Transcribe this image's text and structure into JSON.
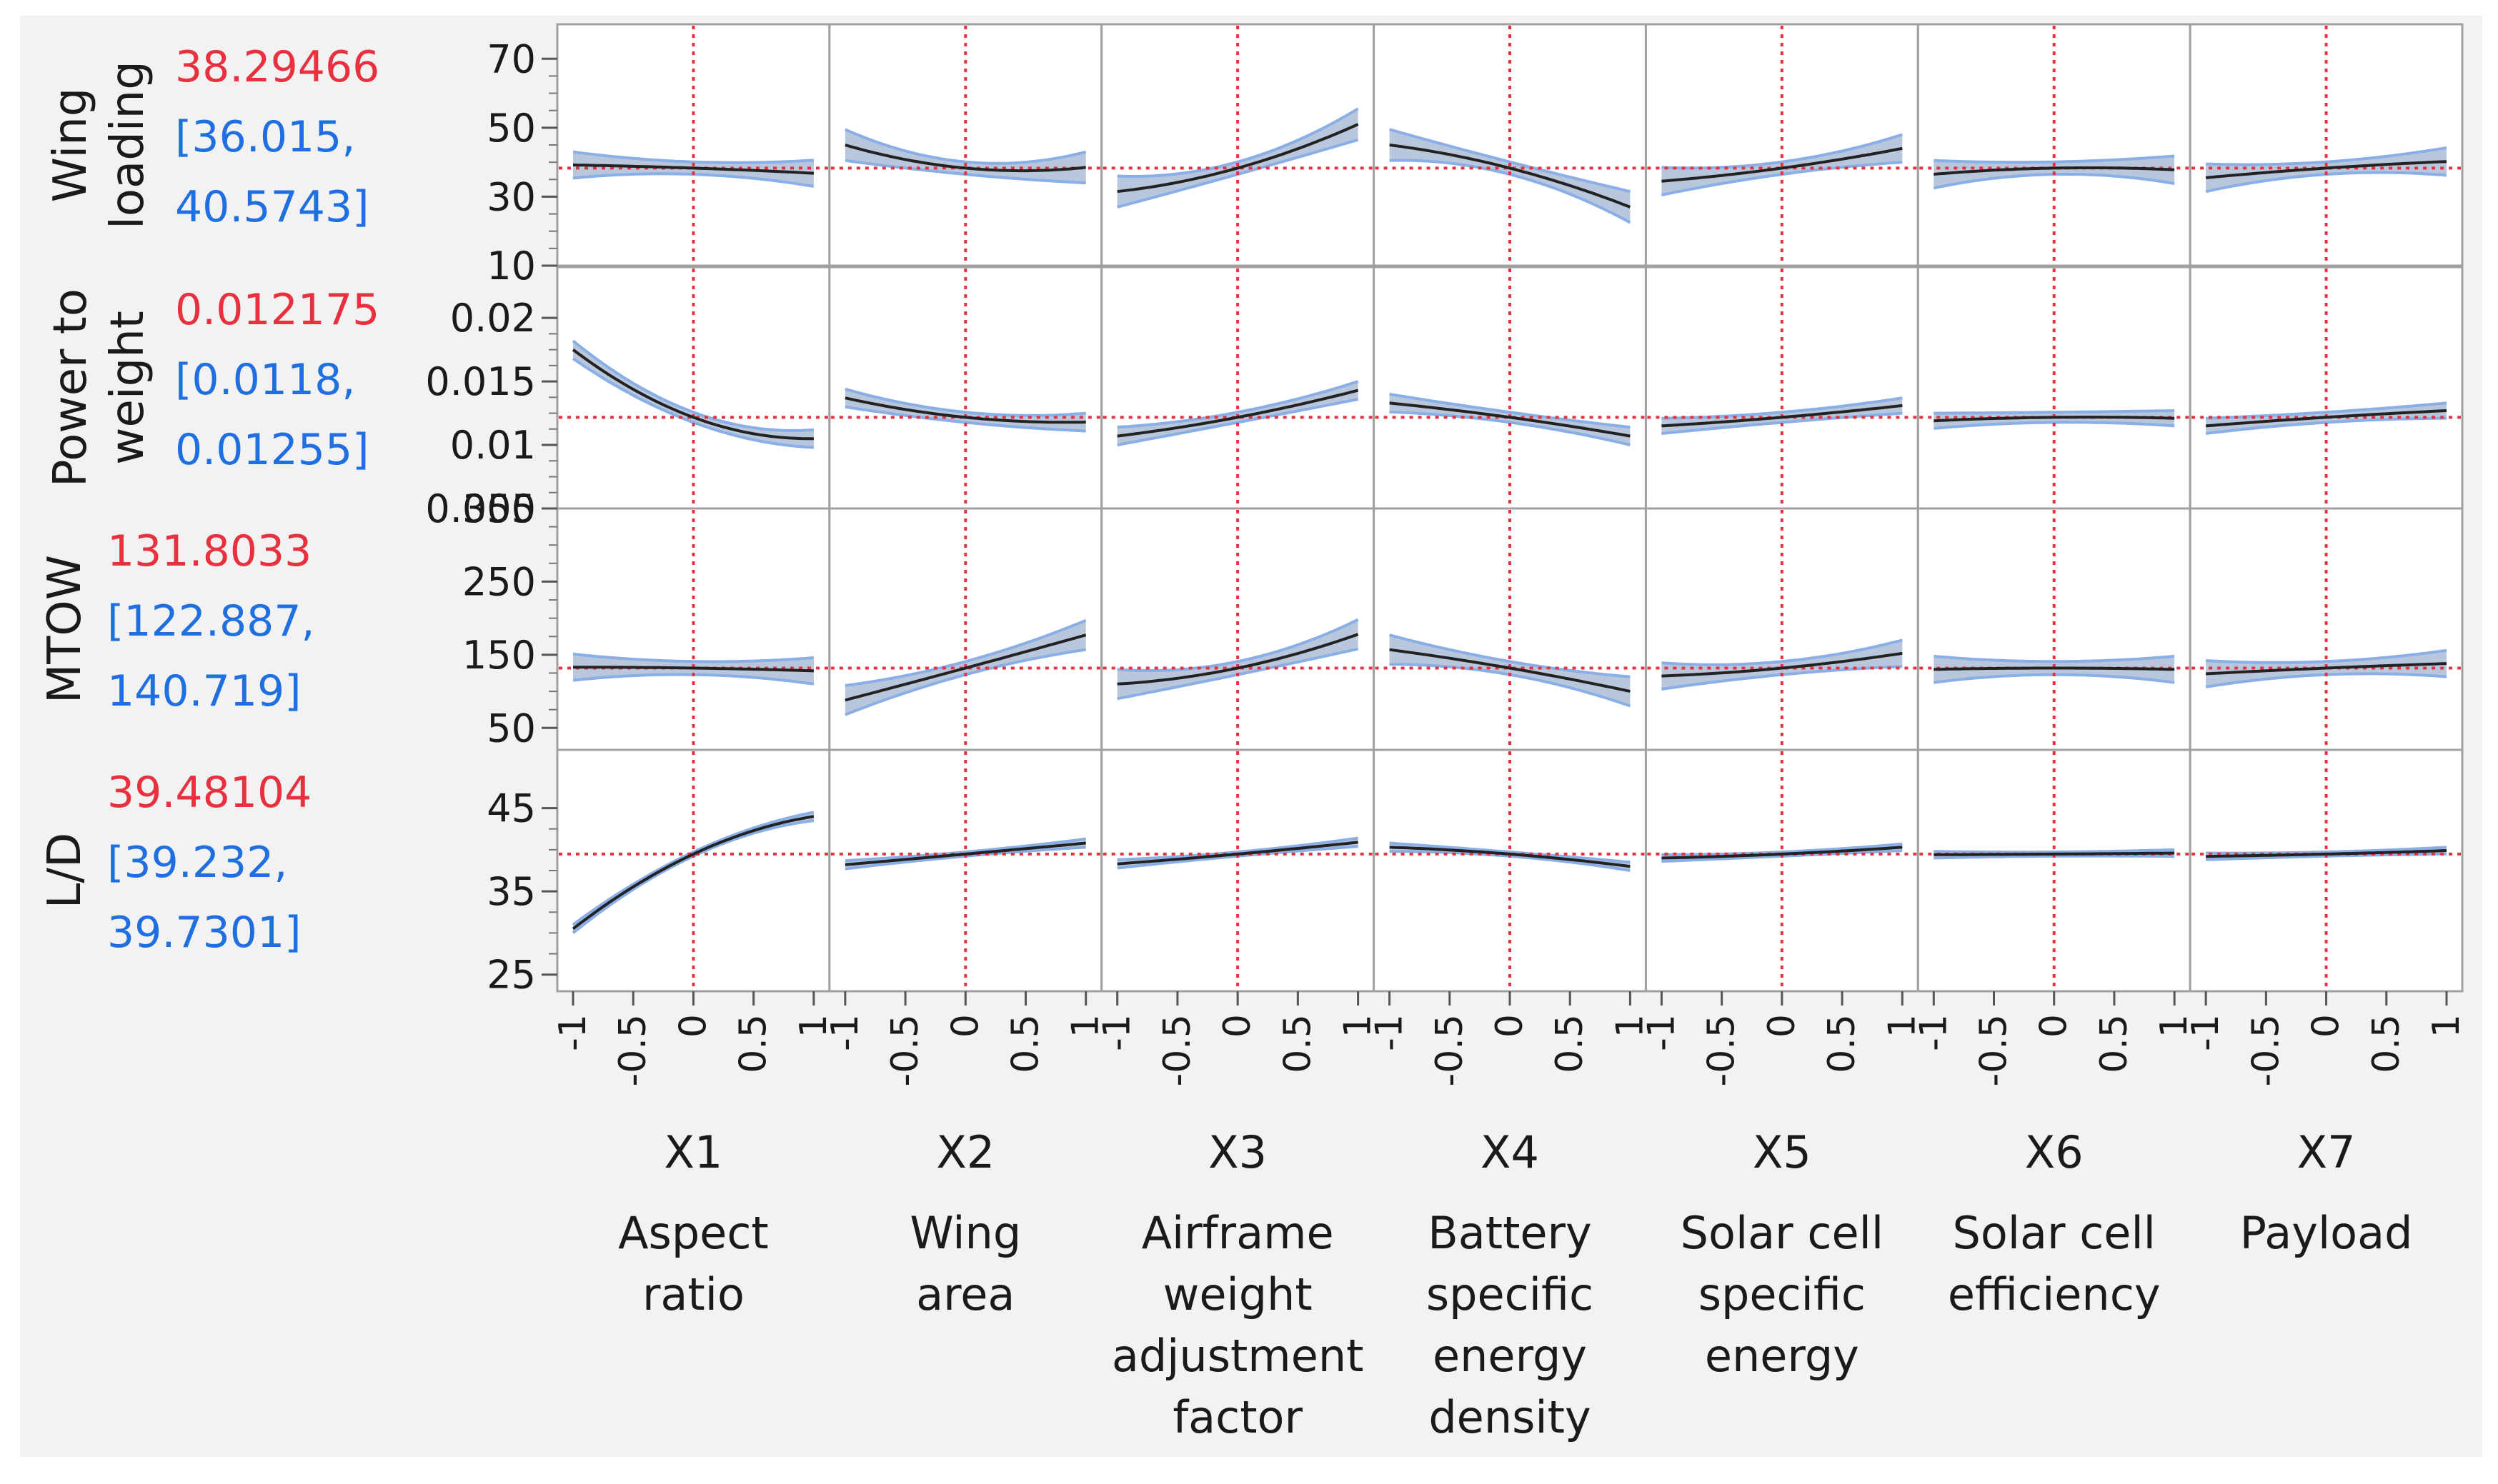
{
  "chart_data": {
    "type": "line",
    "title": "",
    "factors": [
      {
        "id": "X1",
        "lines": [
          "Aspect",
          "ratio"
        ],
        "current": 0
      },
      {
        "id": "X2",
        "lines": [
          "Wing",
          "area"
        ],
        "current": 0
      },
      {
        "id": "X3",
        "lines": [
          "Airframe",
          "weight",
          "adjustment",
          "factor"
        ],
        "current": 0
      },
      {
        "id": "X4",
        "lines": [
          "Battery",
          "specific",
          "energy",
          "density"
        ],
        "current": 0
      },
      {
        "id": "X5",
        "lines": [
          "Solar cell",
          "specific",
          "energy"
        ],
        "current": 0
      },
      {
        "id": "X6",
        "lines": [
          "Solar cell",
          "efficiency"
        ],
        "current": 0
      },
      {
        "id": "X7",
        "lines": [
          "Payload"
        ],
        "current": 0
      }
    ],
    "x_range": [
      -1,
      1
    ],
    "x_ticks": [
      "-1",
      "-0.5",
      "0",
      "0.5",
      "1"
    ],
    "x_tick_values": [
      -1,
      -0.5,
      0,
      0.5,
      1
    ],
    "responses": [
      {
        "label_lines": [
          "Wing",
          "loading"
        ],
        "predicted": "38.29466",
        "ci_lines": [
          "[36.015,",
          "40.5743]"
        ],
        "value": 38.29466,
        "ylim": [
          10,
          80
        ],
        "y_ticks": [
          "70",
          "50",
          "30",
          "10"
        ],
        "y_tick_values": [
          70,
          50,
          30,
          10
        ],
        "curves": [
          {
            "factor": "X1",
            "x": [
              -1,
              0,
              1
            ],
            "y": [
              39.2,
              38.29,
              36.8
            ],
            "ci_halfwidth": [
              3.8,
              1.8,
              3.8
            ]
          },
          {
            "factor": "X2",
            "x": [
              -1,
              0,
              1
            ],
            "y": [
              45.0,
              38.29,
              38.5
            ],
            "ci_halfwidth": [
              4.5,
              1.8,
              4.5
            ]
          },
          {
            "factor": "X3",
            "x": [
              -1,
              0,
              1
            ],
            "y": [
              31.5,
              38.29,
              51.0
            ],
            "ci_halfwidth": [
              4.5,
              1.8,
              4.5
            ]
          },
          {
            "factor": "X4",
            "x": [
              -1,
              0,
              1
            ],
            "y": [
              45.0,
              38.29,
              27.0
            ],
            "ci_halfwidth": [
              4.5,
              1.8,
              4.5
            ]
          },
          {
            "factor": "X5",
            "x": [
              -1,
              0,
              1
            ],
            "y": [
              34.5,
              38.29,
              44.0
            ],
            "ci_halfwidth": [
              4.0,
              1.8,
              4.0
            ]
          },
          {
            "factor": "X6",
            "x": [
              -1,
              0,
              1
            ],
            "y": [
              36.5,
              38.29,
              37.8
            ],
            "ci_halfwidth": [
              4.0,
              1.8,
              4.0
            ]
          },
          {
            "factor": "X7",
            "x": [
              -1,
              0,
              1
            ],
            "y": [
              35.5,
              38.29,
              40.2
            ],
            "ci_halfwidth": [
              4.0,
              1.8,
              4.0
            ]
          }
        ]
      },
      {
        "label_lines": [
          "Power to",
          "weight"
        ],
        "predicted": "0.012175",
        "ci_lines": [
          "[0.0118,",
          "0.01255]"
        ],
        "value": 0.012175,
        "ylim": [
          0.005,
          0.024
        ],
        "y_ticks": [
          "0.02",
          "0.015",
          "0.01",
          "0.005"
        ],
        "y_tick_values": [
          0.02,
          0.015,
          0.01,
          0.005
        ],
        "curves": [
          {
            "factor": "X1",
            "x": [
              -1,
              0,
              1
            ],
            "y": [
              0.0175,
              0.012175,
              0.0105
            ],
            "ci_halfwidth": [
              0.0007,
              0.0004,
              0.0007
            ]
          },
          {
            "factor": "X2",
            "x": [
              -1,
              0,
              1
            ],
            "y": [
              0.0137,
              0.012175,
              0.0118
            ],
            "ci_halfwidth": [
              0.0007,
              0.0004,
              0.0007
            ]
          },
          {
            "factor": "X3",
            "x": [
              -1,
              0,
              1
            ],
            "y": [
              0.0107,
              0.012175,
              0.0143
            ],
            "ci_halfwidth": [
              0.0007,
              0.0004,
              0.0007
            ]
          },
          {
            "factor": "X4",
            "x": [
              -1,
              0,
              1
            ],
            "y": [
              0.0133,
              0.012175,
              0.0107
            ],
            "ci_halfwidth": [
              0.0007,
              0.0004,
              0.0007
            ]
          },
          {
            "factor": "X5",
            "x": [
              -1,
              0,
              1
            ],
            "y": [
              0.0115,
              0.012175,
              0.0131
            ],
            "ci_halfwidth": [
              0.0006,
              0.0004,
              0.0006
            ]
          },
          {
            "factor": "X6",
            "x": [
              -1,
              0,
              1
            ],
            "y": [
              0.0119,
              0.012175,
              0.0121
            ],
            "ci_halfwidth": [
              0.0006,
              0.0004,
              0.0006
            ]
          },
          {
            "factor": "X7",
            "x": [
              -1,
              0,
              1
            ],
            "y": [
              0.0115,
              0.012175,
              0.0127
            ],
            "ci_halfwidth": [
              0.0006,
              0.0004,
              0.0006
            ]
          }
        ]
      },
      {
        "label_lines": [
          "MTOW"
        ],
        "predicted": "131.8033",
        "ci_lines": [
          "[122.887,",
          "140.719]"
        ],
        "value": 131.8033,
        "ylim": [
          20,
          350
        ],
        "y_ticks": [
          "350",
          "250",
          "150",
          "50"
        ],
        "y_tick_values": [
          350,
          250,
          150,
          50
        ],
        "curves": [
          {
            "factor": "X1",
            "x": [
              -1,
              0,
              1
            ],
            "y": [
              133,
              131.8,
              128
            ],
            "ci_halfwidth": [
              18,
              9,
              18
            ]
          },
          {
            "factor": "X2",
            "x": [
              -1,
              0,
              1
            ],
            "y": [
              88,
              131.8,
              177
            ],
            "ci_halfwidth": [
              20,
              9,
              20
            ]
          },
          {
            "factor": "X3",
            "x": [
              -1,
              0,
              1
            ],
            "y": [
              110,
              131.8,
              178
            ],
            "ci_halfwidth": [
              20,
              9,
              20
            ]
          },
          {
            "factor": "X4",
            "x": [
              -1,
              0,
              1
            ],
            "y": [
              157,
              131.8,
              100
            ],
            "ci_halfwidth": [
              20,
              9,
              20
            ]
          },
          {
            "factor": "X5",
            "x": [
              -1,
              0,
              1
            ],
            "y": [
              121,
              131.8,
              152
            ],
            "ci_halfwidth": [
              18,
              9,
              18
            ]
          },
          {
            "factor": "X6",
            "x": [
              -1,
              0,
              1
            ],
            "y": [
              130,
              131.8,
              130
            ],
            "ci_halfwidth": [
              18,
              9,
              18
            ]
          },
          {
            "factor": "X7",
            "x": [
              -1,
              0,
              1
            ],
            "y": [
              124,
              131.8,
              138
            ],
            "ci_halfwidth": [
              18,
              9,
              18
            ]
          }
        ]
      },
      {
        "label_lines": [
          "L/D"
        ],
        "predicted": "39.48104",
        "ci_lines": [
          "[39.232,",
          "39.7301]"
        ],
        "value": 39.48104,
        "ylim": [
          23,
          52
        ],
        "y_ticks": [
          "45",
          "35",
          "25"
        ],
        "y_tick_values": [
          45,
          35,
          25
        ],
        "curves": [
          {
            "factor": "X1",
            "x": [
              -1,
              0,
              1
            ],
            "y": [
              30.5,
              39.48,
              44.0
            ],
            "ci_halfwidth": [
              0.5,
              0.25,
              0.5
            ]
          },
          {
            "factor": "X2",
            "x": [
              -1,
              0,
              1
            ],
            "y": [
              38.2,
              39.48,
              40.8
            ],
            "ci_halfwidth": [
              0.5,
              0.25,
              0.5
            ]
          },
          {
            "factor": "X3",
            "x": [
              -1,
              0,
              1
            ],
            "y": [
              38.3,
              39.48,
              40.9
            ],
            "ci_halfwidth": [
              0.5,
              0.25,
              0.5
            ]
          },
          {
            "factor": "X4",
            "x": [
              -1,
              0,
              1
            ],
            "y": [
              40.3,
              39.48,
              38.0
            ],
            "ci_halfwidth": [
              0.5,
              0.25,
              0.5
            ]
          },
          {
            "factor": "X5",
            "x": [
              -1,
              0,
              1
            ],
            "y": [
              39.0,
              39.48,
              40.3
            ],
            "ci_halfwidth": [
              0.4,
              0.25,
              0.4
            ]
          },
          {
            "factor": "X6",
            "x": [
              -1,
              0,
              1
            ],
            "y": [
              39.4,
              39.48,
              39.6
            ],
            "ci_halfwidth": [
              0.4,
              0.25,
              0.4
            ]
          },
          {
            "factor": "X7",
            "x": [
              -1,
              0,
              1
            ],
            "y": [
              39.2,
              39.48,
              39.9
            ],
            "ci_halfwidth": [
              0.4,
              0.25,
              0.4
            ]
          }
        ]
      }
    ],
    "colors": {
      "background": "#f2f2f2",
      "plot_background": "#ffffff",
      "frame": "#a0a0a0",
      "curve": "#222222",
      "ci_fill": "#b9c7dc",
      "ci_edge": "#8aaee6",
      "reference": "#e8303f",
      "predicted_value": "#e8303f",
      "ci_text": "#1f6fe0"
    }
  }
}
